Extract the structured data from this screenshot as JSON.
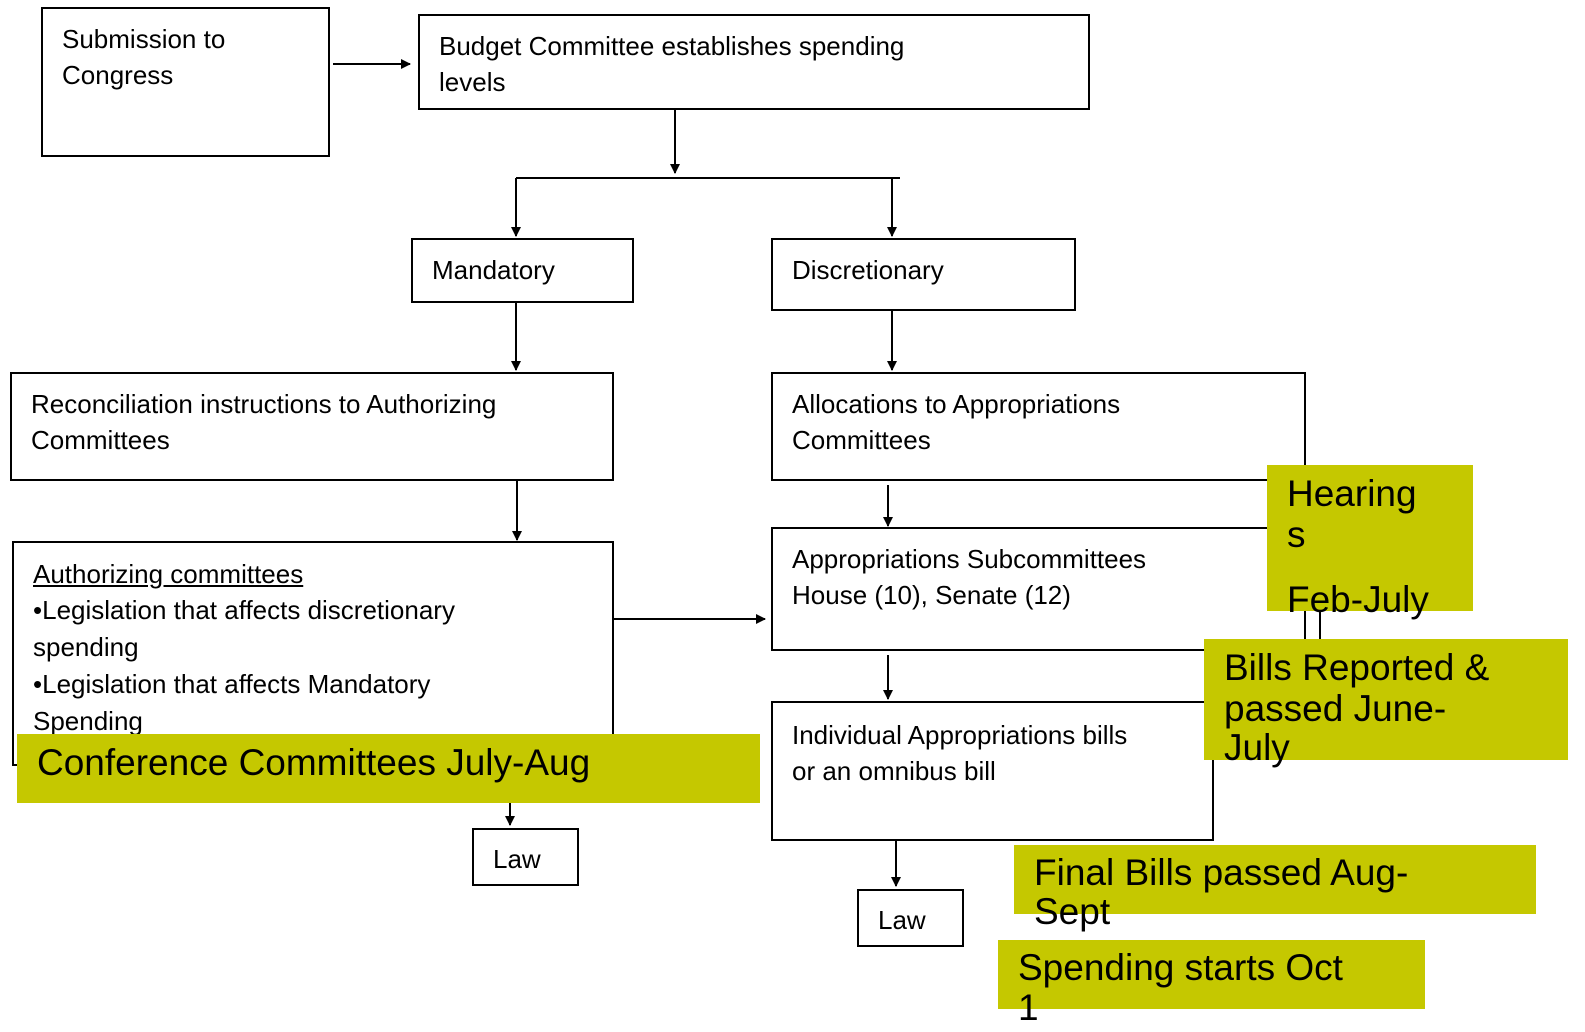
{
  "boxes": {
    "submission": {
      "lines": [
        "Submission to",
        "Congress"
      ]
    },
    "budget": {
      "lines": [
        "Budget Committee establishes spending",
        "levels"
      ]
    },
    "mandatory": {
      "lines": [
        "Mandatory"
      ]
    },
    "discretionary": {
      "lines": [
        "Discretionary"
      ]
    },
    "reconciliation": {
      "lines": [
        "Reconciliation instructions to Authorizing",
        "Committees"
      ]
    },
    "allocations": {
      "lines": [
        "Allocations to Appropriations",
        "Committees"
      ]
    },
    "authorizing": {
      "lines": [
        "Authorizing committees",
        "•Legislation that affects discretionary",
        "spending",
        "•Legislation that affects Mandatory",
        "Spending"
      ]
    },
    "subcommittees": {
      "lines": [
        "Appropriations Subcommittees",
        "House (10), Senate (12)"
      ]
    },
    "individual": {
      "lines": [
        "Individual Appropriations bills",
        "or an omnibus bill"
      ]
    },
    "law_left": {
      "lines": [
        "Law"
      ]
    },
    "law_right": {
      "lines": [
        "Law"
      ]
    }
  },
  "notes": {
    "hearings": {
      "lines": [
        "Hearing",
        "s",
        "Feb-July"
      ]
    },
    "bills": {
      "lines": [
        "Bills Reported &",
        "passed June-",
        "July"
      ]
    },
    "conference": {
      "lines": [
        "Conference Committees July-Aug"
      ]
    },
    "final": {
      "lines": [
        "Final Bills passed Aug-",
        "Sept"
      ]
    },
    "spending": {
      "lines": [
        "Spending starts Oct",
        "1"
      ]
    }
  }
}
